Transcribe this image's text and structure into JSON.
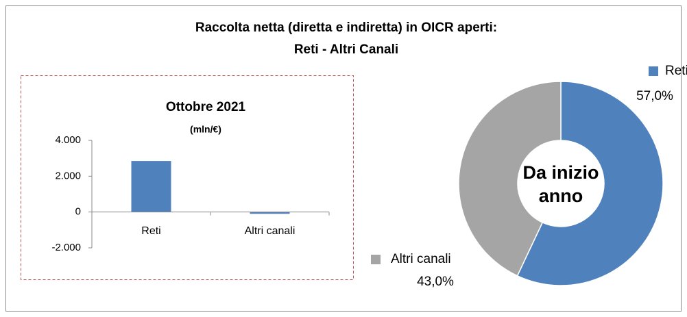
{
  "title": [
    "Raccolta netta (diretta e indiretta) in OICR aperti:",
    "Reti - Altri Canali"
  ],
  "chart_data": [
    {
      "type": "bar",
      "title": "Ottobre 2021",
      "subtitle": "(mln/€)",
      "categories": [
        "Reti",
        "Altri canali"
      ],
      "values": [
        2850,
        -100
      ],
      "color": "#4f81bd",
      "ylim": [
        -2000,
        4000
      ],
      "yticks": [
        {
          "value": -2000,
          "label": "-2.000"
        },
        0,
        {
          "value": 2000,
          "label": "2.000"
        },
        {
          "value": 4000,
          "label": "4.000"
        }
      ]
    },
    {
      "type": "donut",
      "center_label": [
        "Da inizio",
        "anno"
      ],
      "categories": [
        "Reti",
        "Altri canali"
      ],
      "values": [
        57,
        43
      ],
      "value_labels": [
        "57,0%",
        "43,0%"
      ],
      "colors": [
        "#4f81bd",
        "#a5a5a5"
      ]
    }
  ]
}
